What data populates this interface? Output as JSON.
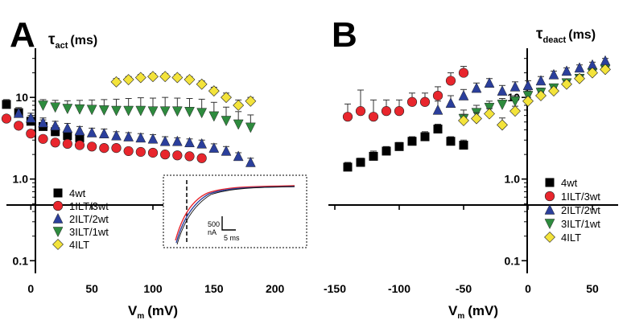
{
  "chart_data": [
    {
      "panel_label": "A",
      "type": "scatter",
      "ylabel_symbol": "τ",
      "ylabel_subscript": "act",
      "ylabel_unit": "(ms)",
      "xlabel_main": "V",
      "xlabel_subscript": "m",
      "xlabel_unit": "(mV)",
      "x_scale": "linear",
      "y_scale": "log",
      "xlim": [
        -20,
        220
      ],
      "ylim": [
        0.07,
        40
      ],
      "xticks": [
        0,
        50,
        100,
        150,
        200
      ],
      "xtick_labels": [
        "0",
        "50",
        "100",
        "150",
        "200"
      ],
      "yticks": [
        0.1,
        1.0,
        10
      ],
      "ytick_labels": [
        "0.1",
        "1.0",
        "10"
      ],
      "legend_position": "lower-left",
      "series": [
        {
          "name": "4wt",
          "marker": "square",
          "color": "#000000",
          "x": [
            -20,
            -10,
            0,
            10,
            20,
            30,
            40
          ],
          "y": [
            8.2,
            6.5,
            5.1,
            4.4,
            3.8,
            3.4,
            3.2
          ],
          "err": [
            1.2,
            1.0,
            0.9,
            0.9,
            0.7,
            0.6,
            0.5
          ]
        },
        {
          "name": "1ILT/3wt",
          "marker": "circle",
          "color": "#e8262d",
          "x": [
            -20,
            -10,
            0,
            10,
            20,
            30,
            40,
            50,
            60,
            70,
            80,
            90,
            100,
            110,
            120,
            130,
            140
          ],
          "y": [
            5.5,
            4.5,
            3.6,
            3.1,
            2.8,
            2.7,
            2.6,
            2.5,
            2.4,
            2.4,
            2.2,
            2.15,
            2.1,
            2.0,
            1.95,
            1.9,
            1.8
          ],
          "err": [
            0.5,
            0.4,
            0.3,
            0.3,
            0.25,
            0.2,
            0.2,
            0.2,
            0.2,
            0.2,
            0.2,
            0.2,
            0.15,
            0.15,
            0.15,
            0.15,
            0.15
          ]
        },
        {
          "name": "2ILT/2wt",
          "marker": "triangle-up",
          "color": "#2b3f9c",
          "x": [
            -10,
            0,
            10,
            20,
            30,
            40,
            50,
            60,
            70,
            80,
            90,
            100,
            110,
            120,
            130,
            140,
            150,
            160,
            170,
            180
          ],
          "y": [
            6.4,
            5.6,
            4.9,
            4.5,
            4.2,
            3.9,
            3.7,
            3.6,
            3.4,
            3.3,
            3.2,
            3.1,
            2.9,
            2.9,
            2.8,
            2.7,
            2.4,
            2.2,
            1.9,
            1.6
          ],
          "err": [
            0.9,
            0.8,
            0.7,
            0.6,
            0.6,
            0.5,
            0.5,
            0.5,
            0.4,
            0.4,
            0.4,
            0.4,
            0.4,
            0.3,
            0.3,
            0.3,
            0.3,
            0.3,
            0.2,
            0.2
          ]
        },
        {
          "name": "3ILT/1wt",
          "marker": "triangle-down",
          "color": "#2e8b3e",
          "x": [
            10,
            20,
            30,
            40,
            50,
            60,
            70,
            80,
            90,
            100,
            110,
            120,
            130,
            140,
            150,
            160,
            170,
            180
          ],
          "y": [
            8.0,
            7.6,
            7.3,
            7.2,
            7.1,
            7.0,
            6.9,
            6.9,
            6.9,
            6.8,
            6.8,
            6.8,
            6.7,
            6.5,
            5.9,
            5.2,
            4.7,
            4.3
          ],
          "err": [
            1.4,
            1.6,
            1.8,
            2.0,
            2.2,
            2.4,
            2.6,
            2.8,
            3.0,
            3.0,
            3.2,
            3.0,
            3.0,
            3.0,
            2.8,
            2.4,
            2.0,
            1.8
          ]
        },
        {
          "name": "4ILT",
          "marker": "diamond",
          "color": "#f3e33b",
          "x": [
            70,
            80,
            90,
            100,
            110,
            120,
            130,
            140,
            150,
            160,
            170,
            180
          ],
          "y": [
            15.5,
            16.5,
            17.5,
            18.0,
            18.0,
            17.5,
            16.5,
            14.5,
            12.0,
            10.0,
            8.0,
            9.0
          ],
          "err": [
            1.5,
            1.5,
            1.5,
            1.5,
            1.5,
            1.5,
            1.5,
            1.4,
            1.3,
            1.3,
            1.3,
            1.0
          ]
        }
      ],
      "inset": {
        "scale_bar_y_value": "500",
        "scale_bar_y_unit": "nA",
        "scale_bar_x_label": "5 ms"
      }
    },
    {
      "panel_label": "B",
      "type": "scatter",
      "ylabel_symbol": "τ",
      "ylabel_subscript": "deact",
      "ylabel_unit": "(ms)",
      "xlabel_main": "V",
      "xlabel_subscript": "m",
      "xlabel_unit": "(mV)",
      "x_scale": "linear",
      "y_scale": "log",
      "xlim": [
        -155,
        70
      ],
      "ylim": [
        0.07,
        40
      ],
      "xticks": [
        -150,
        -100,
        -50,
        0,
        50
      ],
      "xtick_labels": [
        "-150",
        "-100",
        "-50",
        "0",
        "50"
      ],
      "yticks": [
        0.1,
        1.0,
        10
      ],
      "ytick_labels": [
        "0.1",
        "1.0",
        "10"
      ],
      "legend_position": "lower-right",
      "series": [
        {
          "name": "4wt",
          "marker": "square",
          "color": "#000000",
          "x": [
            -140,
            -130,
            -120,
            -110,
            -100,
            -90,
            -80,
            -70,
            -60,
            -50
          ],
          "y": [
            1.4,
            1.6,
            1.9,
            2.2,
            2.5,
            2.9,
            3.3,
            4.1,
            2.9,
            2.6
          ],
          "err": [
            0.2,
            0.2,
            0.3,
            0.3,
            0.3,
            0.4,
            0.5,
            0.6,
            0.4,
            0.4
          ]
        },
        {
          "name": "1ILT/3wt",
          "marker": "circle",
          "color": "#e8262d",
          "x": [
            -140,
            -130,
            -120,
            -110,
            -100,
            -90,
            -80,
            -70,
            -60,
            -50
          ],
          "y": [
            5.8,
            6.8,
            5.8,
            6.8,
            6.8,
            8.8,
            8.8,
            10.5,
            16.0,
            20.0
          ],
          "err": [
            2.5,
            5.5,
            3.5,
            2.5,
            2.5,
            2.5,
            2.5,
            3.0,
            4.0,
            4.0
          ]
        },
        {
          "name": "2ILT/2wt",
          "marker": "triangle-up",
          "color": "#2b3f9c",
          "x": [
            -70,
            -60,
            -50,
            -40,
            -30,
            -20,
            -10,
            0,
            10,
            20,
            30,
            40,
            50,
            60
          ],
          "y": [
            7.0,
            8.5,
            10.5,
            13.0,
            15.0,
            12.0,
            13.5,
            14.0,
            16.0,
            19.0,
            21.0,
            23.0,
            25.0,
            28.0
          ],
          "err": [
            2.0,
            2.0,
            2.0,
            2.0,
            2.0,
            2.0,
            2.0,
            2.0,
            2.0,
            2.0,
            2.0,
            2.0,
            2.0,
            2.0
          ]
        },
        {
          "name": "3ILT/1wt",
          "marker": "triangle-down",
          "color": "#2e8b3e",
          "x": [
            -50,
            -40,
            -30,
            -20,
            -10,
            0,
            10,
            20,
            30,
            40,
            50,
            60
          ],
          "y": [
            5.5,
            6.5,
            7.5,
            8.2,
            9.0,
            10.5,
            11.5,
            13.0,
            15.0,
            17.0,
            20.0,
            22.0
          ],
          "err": [
            1.5,
            1.5,
            1.5,
            1.5,
            1.5,
            1.5,
            1.5,
            1.5,
            1.5,
            2.0,
            2.0,
            2.0
          ]
        },
        {
          "name": "4ILT",
          "marker": "diamond",
          "color": "#f3e33b",
          "x": [
            -50,
            -40,
            -30,
            -20,
            -10,
            0,
            10,
            20,
            30,
            40,
            50,
            60
          ],
          "y": [
            5.2,
            5.5,
            6.3,
            4.6,
            6.8,
            9.0,
            10.5,
            12.0,
            14.5,
            17.0,
            20.0,
            22.0
          ],
          "err": [
            1.0,
            1.0,
            1.0,
            1.0,
            1.0,
            1.0,
            1.0,
            1.0,
            1.5,
            1.5,
            2.0,
            2.0
          ]
        }
      ]
    }
  ]
}
